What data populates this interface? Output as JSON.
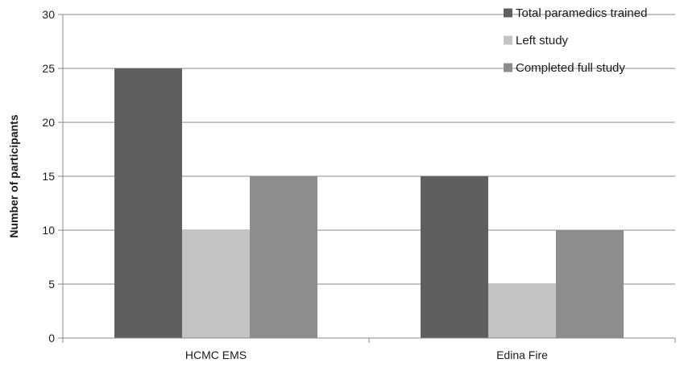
{
  "chart_data": {
    "type": "bar",
    "title": "",
    "xlabel": "",
    "ylabel": "Number of participants",
    "categories": [
      "HCMC EMS",
      "Edina Fire"
    ],
    "series": [
      {
        "name": "Total paramedics trained",
        "values": [
          25,
          15
        ],
        "color": "#5f5f61"
      },
      {
        "name": "Left study",
        "values": [
          10,
          5
        ],
        "color": "#c2c3c5"
      },
      {
        "name": "Completed full study",
        "values": [
          15,
          10
        ],
        "color": "#8c8d8f"
      }
    ],
    "ylim": [
      0,
      30
    ],
    "yticks": [
      0,
      5,
      10,
      15,
      20,
      25,
      30
    ],
    "grid": true,
    "legend": "top-right"
  }
}
